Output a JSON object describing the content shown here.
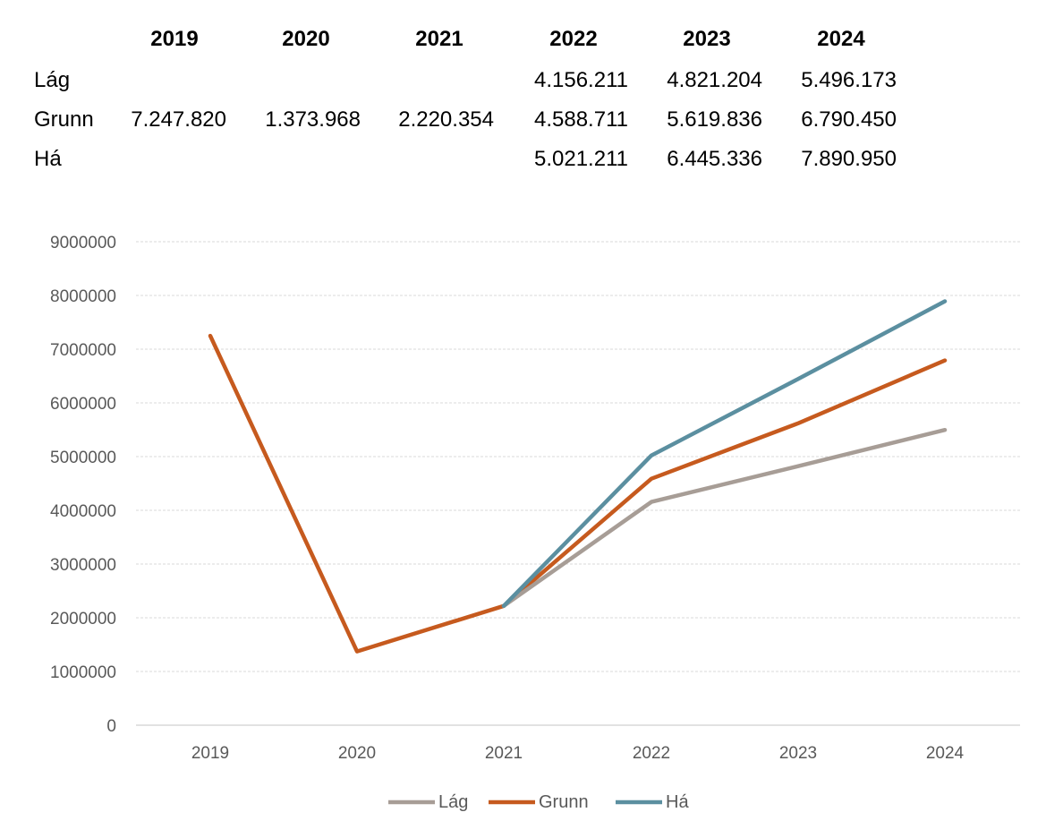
{
  "table": {
    "headers": [
      "2019",
      "2020",
      "2021",
      "2022",
      "2023",
      "2024"
    ],
    "rows": [
      {
        "label": "Lág",
        "cells": [
          "",
          "",
          "",
          "4.156.211",
          "4.821.204",
          "5.496.173"
        ]
      },
      {
        "label": "Grunn",
        "cells": [
          "7.247.820",
          "1.373.968",
          "2.220.354",
          "4.588.711",
          "5.619.836",
          "6.790.450"
        ]
      },
      {
        "label": "Há",
        "cells": [
          "",
          "",
          "",
          "5.021.211",
          "6.445.336",
          "7.890.950"
        ]
      }
    ]
  },
  "chart_data": {
    "type": "line",
    "categories": [
      "2019",
      "2020",
      "2021",
      "2022",
      "2023",
      "2024"
    ],
    "ylim": [
      0,
      9000000
    ],
    "yticks": [
      0,
      1000000,
      2000000,
      3000000,
      4000000,
      5000000,
      6000000,
      7000000,
      8000000,
      9000000
    ],
    "ytick_labels": [
      "0",
      "1000000",
      "2000000",
      "3000000",
      "4000000",
      "5000000",
      "6000000",
      "7000000",
      "8000000",
      "9000000"
    ],
    "grid": true,
    "legend_position": "bottom",
    "series": [
      {
        "name": "Lág",
        "color": "#a79d96",
        "values": [
          null,
          null,
          2220354,
          4156211,
          4821204,
          5496173
        ]
      },
      {
        "name": "Grunn",
        "color": "#c65a1e",
        "values": [
          7247820,
          1373968,
          2220354,
          4588711,
          5619836,
          6790450
        ]
      },
      {
        "name": "Há",
        "color": "#5b8fa0",
        "values": [
          null,
          null,
          2220354,
          5021211,
          6445336,
          7890950
        ]
      }
    ]
  }
}
